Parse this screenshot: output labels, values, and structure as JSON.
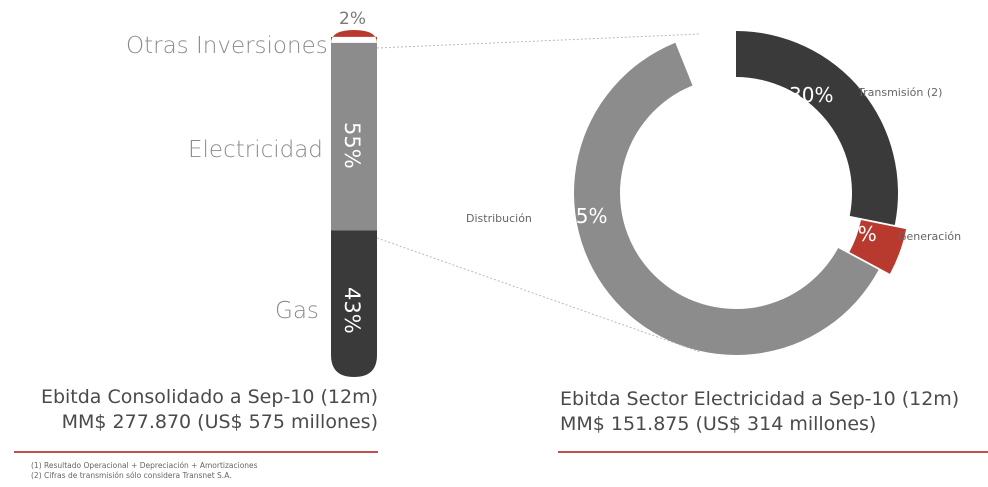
{
  "colors": {
    "light_gray": "#8c8c8c",
    "dark": "#3a3a3a",
    "red": "#b83a2e",
    "accent_line": "#c0504d"
  },
  "chart_data": [
    {
      "type": "bar",
      "orientation": "vertical-stacked",
      "categories": [
        "Otras Inversiones",
        "Electricidad",
        "Gas"
      ],
      "values": [
        2,
        55,
        43
      ],
      "value_labels": [
        "2%",
        "55%",
        "43%"
      ],
      "caption_line1": "Ebitda Consolidado a Sep-10 (12m)",
      "caption_line2": "MM$ 277.870 (US$ 575 millones)"
    },
    {
      "type": "pie",
      "categories": [
        "Transmisión (2)",
        "Generación",
        "Distribución"
      ],
      "values": [
        30,
        5,
        65
      ],
      "value_labels": [
        "30%",
        "5%",
        "65%"
      ],
      "caption_line1": "Ebitda Sector Electricidad a Sep-10 (12m)",
      "caption_line2": "MM$ 151.875 (US$ 314 millones)"
    }
  ],
  "footnotes": [
    "(1) Resultado Operacional + Depreciación + Amortizaciones",
    "(2) Cifras de transmisión sólo considera Transnet S.A."
  ]
}
